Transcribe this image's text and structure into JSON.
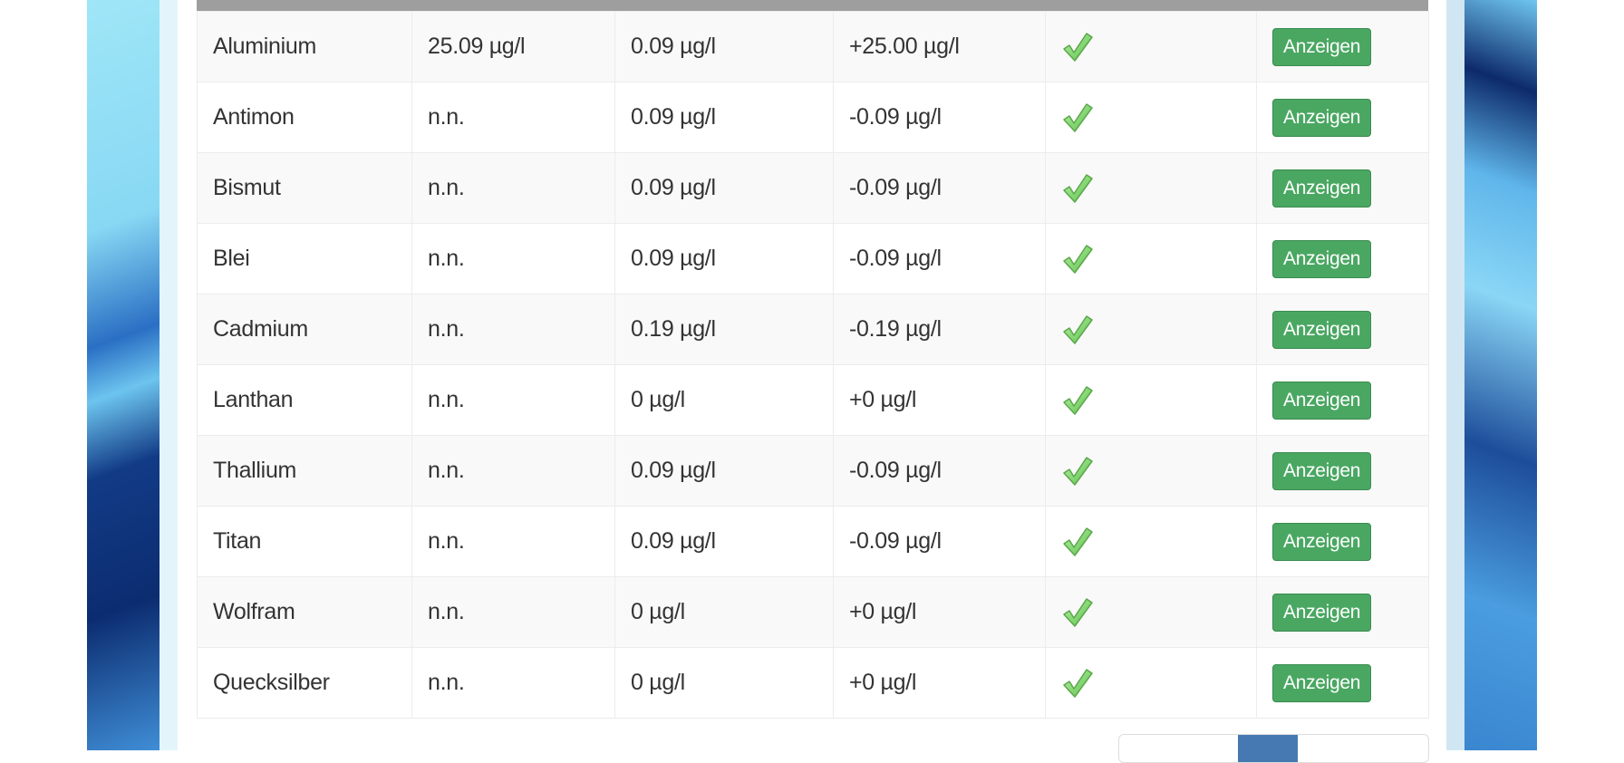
{
  "table": {
    "rows": [
      {
        "element": "Aluminium",
        "measured": "25.09 µg/l",
        "limit": "0.09 µg/l",
        "difference": "+25.00 µg/l",
        "status": "ok",
        "action": "Anzeigen"
      },
      {
        "element": "Antimon",
        "measured": "n.n.",
        "limit": "0.09 µg/l",
        "difference": "-0.09 µg/l",
        "status": "ok",
        "action": "Anzeigen"
      },
      {
        "element": "Bismut",
        "measured": "n.n.",
        "limit": "0.09 µg/l",
        "difference": "-0.09 µg/l",
        "status": "ok",
        "action": "Anzeigen"
      },
      {
        "element": "Blei",
        "measured": "n.n.",
        "limit": "0.09 µg/l",
        "difference": "-0.09 µg/l",
        "status": "ok",
        "action": "Anzeigen"
      },
      {
        "element": "Cadmium",
        "measured": "n.n.",
        "limit": "0.19 µg/l",
        "difference": "-0.19 µg/l",
        "status": "ok",
        "action": "Anzeigen"
      },
      {
        "element": "Lanthan",
        "measured": "n.n.",
        "limit": "0 µg/l",
        "difference": "+0 µg/l",
        "status": "ok",
        "action": "Anzeigen"
      },
      {
        "element": "Thallium",
        "measured": "n.n.",
        "limit": "0.09 µg/l",
        "difference": "-0.09 µg/l",
        "status": "ok",
        "action": "Anzeigen"
      },
      {
        "element": "Titan",
        "measured": "n.n.",
        "limit": "0.09 µg/l",
        "difference": "-0.09 µg/l",
        "status": "ok",
        "action": "Anzeigen"
      },
      {
        "element": "Wolfram",
        "measured": "n.n.",
        "limit": "0 µg/l",
        "difference": "+0 µg/l",
        "status": "ok",
        "action": "Anzeigen"
      },
      {
        "element": "Quecksilber",
        "measured": "n.n.",
        "limit": "0 µg/l",
        "difference": "+0 µg/l",
        "status": "ok",
        "action": "Anzeigen"
      }
    ]
  },
  "icons": {
    "status_ok": "green-checkmark-icon"
  },
  "colors": {
    "button": "#4aa762",
    "header_bar": "#9e9e9e",
    "pager_active": "#4679b2"
  }
}
